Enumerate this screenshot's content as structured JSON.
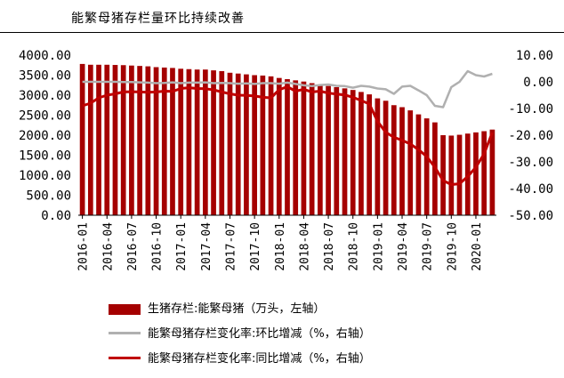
{
  "title": "能繁母猪存栏量环比持续改善",
  "chart_data": {
    "type": "bar+line",
    "categories": [
      "2016-01",
      "2016-02",
      "2016-03",
      "2016-04",
      "2016-05",
      "2016-06",
      "2016-07",
      "2016-08",
      "2016-09",
      "2016-10",
      "2016-11",
      "2016-12",
      "2017-01",
      "2017-02",
      "2017-03",
      "2017-04",
      "2017-05",
      "2017-06",
      "2017-07",
      "2017-08",
      "2017-09",
      "2017-10",
      "2017-11",
      "2017-12",
      "2018-01",
      "2018-02",
      "2018-03",
      "2018-04",
      "2018-05",
      "2018-06",
      "2018-07",
      "2018-08",
      "2018-09",
      "2018-10",
      "2018-11",
      "2018-12",
      "2019-01",
      "2019-02",
      "2019-03",
      "2019-04",
      "2019-05",
      "2019-06",
      "2019-07",
      "2019-08",
      "2019-09",
      "2019-10",
      "2019-11",
      "2019-12",
      "2020-01",
      "2020-02",
      "2020-03"
    ],
    "xtick_labels": [
      "2016-01",
      "2016-04",
      "2016-07",
      "2016-10",
      "2017-01",
      "2017-04",
      "2017-07",
      "2017-10",
      "2018-01",
      "2018-04",
      "2018-07",
      "2018-10",
      "2019-01",
      "2019-04",
      "2019-07",
      "2019-10",
      "2020-01"
    ],
    "left_axis": {
      "ylim": [
        0,
        4000
      ],
      "ticks": [
        "0.00",
        "500.00",
        "1000.00",
        "1500.00",
        "2000.00",
        "2500.00",
        "3000.00",
        "3500.00",
        "4000.00"
      ]
    },
    "right_axis": {
      "ylim": [
        -50,
        10
      ],
      "ticks": [
        "10.00",
        "0.00",
        "-10.00",
        "-20.00",
        "-30.00",
        "-40.00",
        "-50.00"
      ]
    },
    "series": [
      {
        "name": "生猪存栏:能繁母猪（万头，左轴）",
        "kind": "bar",
        "axis": "left",
        "color": "#a50000",
        "values": [
          3780,
          3760,
          3760,
          3760,
          3755,
          3750,
          3740,
          3730,
          3720,
          3700,
          3690,
          3680,
          3660,
          3650,
          3640,
          3640,
          3620,
          3600,
          3560,
          3540,
          3520,
          3500,
          3490,
          3470,
          3430,
          3400,
          3370,
          3340,
          3300,
          3260,
          3230,
          3200,
          3170,
          3130,
          3080,
          3020,
          2920,
          2860,
          2750,
          2700,
          2620,
          2520,
          2420,
          2320,
          2000,
          1990,
          2010,
          2040,
          2070,
          2100,
          2140
        ]
      },
      {
        "name": "能繁母猪存栏变化率:环比增减（%，右轴）",
        "kind": "line",
        "axis": "right",
        "color": "#b0b0b0",
        "values": [
          0.0,
          0.0,
          0.0,
          0.0,
          0.0,
          -0.1,
          -0.1,
          -0.2,
          -0.3,
          -0.5,
          -0.4,
          -0.2,
          -0.5,
          -0.3,
          -0.3,
          -0.2,
          -0.5,
          -0.4,
          -0.5,
          -0.7,
          -0.6,
          -0.8,
          -0.5,
          -0.5,
          -0.7,
          -0.3,
          -0.8,
          -1.3,
          -1.6,
          -1.2,
          -1.0,
          -1.5,
          -1.6,
          -2.2,
          -1.5,
          -1.8,
          -2.5,
          -2.8,
          -4.5,
          -1.8,
          -1.5,
          -3.2,
          -5.0,
          -9.0,
          -9.5,
          -2.0,
          0.0,
          4.0,
          2.5,
          2.0,
          3.0
        ]
      },
      {
        "name": "能繁母猪存栏变化率:同比增减（%，右轴）",
        "kind": "line",
        "axis": "right",
        "color": "#c00000",
        "values": [
          -9.0,
          -8.0,
          -6.0,
          -5.0,
          -4.5,
          -3.8,
          -3.7,
          -3.8,
          -3.9,
          -3.8,
          -3.5,
          -3.6,
          -2.5,
          -2.2,
          -2.5,
          -2.6,
          -3.0,
          -3.8,
          -4.5,
          -5.0,
          -5.1,
          -5.3,
          -5.8,
          -6.0,
          -3.0,
          -1.8,
          -3.5,
          -2.8,
          -3.8,
          -3.5,
          -4.2,
          -4.6,
          -4.9,
          -5.8,
          -7.0,
          -8.3,
          -14.8,
          -18.9,
          -20.8,
          -21.9,
          -23.3,
          -25.4,
          -28.0,
          -32.0,
          -37.0,
          -38.5,
          -38.2,
          -35.5,
          -32.0,
          -27.0,
          -19.0
        ]
      }
    ]
  }
}
